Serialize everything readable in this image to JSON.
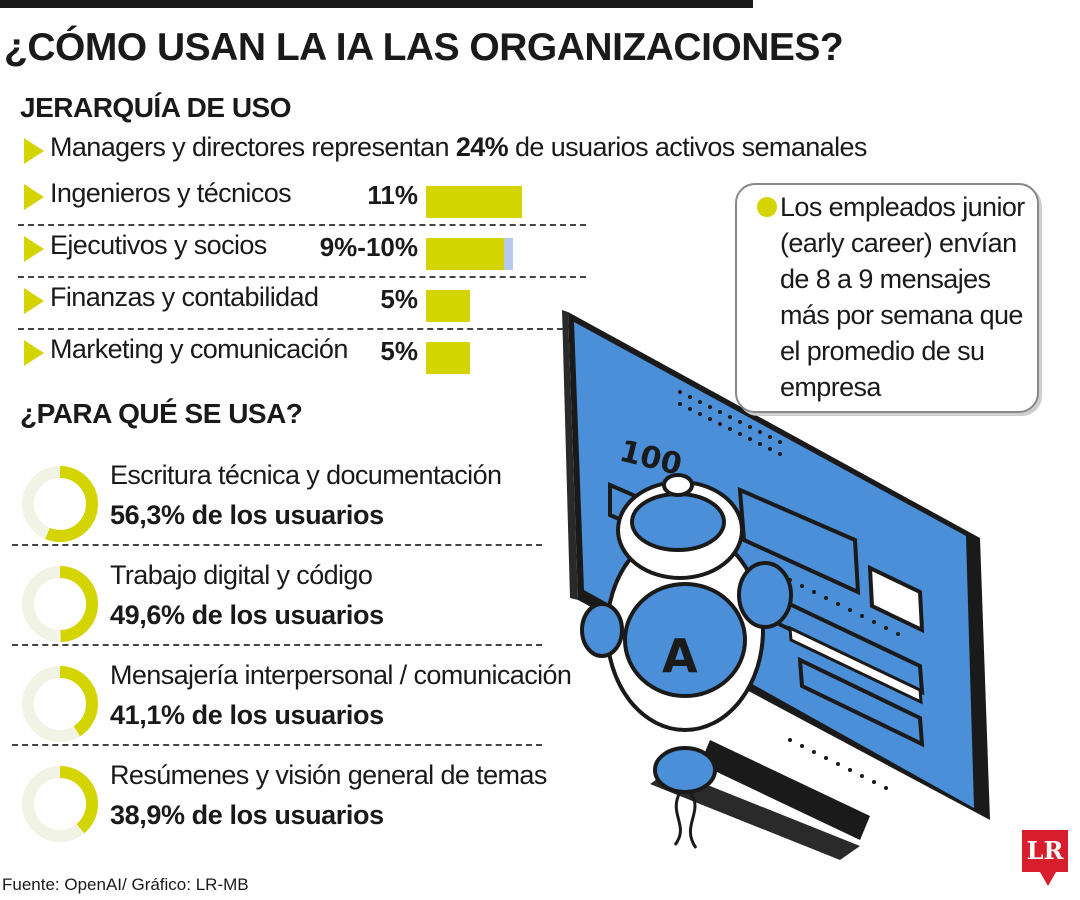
{
  "title": "¿CÓMO USAN LA IA LAS ORGANIZACIONES?",
  "hierarchy": {
    "heading": "JERARQUÍA DE USO",
    "intro_prefix": "Managers y directores representan",
    "intro_value": "24%",
    "intro_suffix": "de usuarios activos semanales",
    "items": [
      {
        "label": "Ingenieros y técnicos",
        "value_label": "11%"
      },
      {
        "label": "Ejecutivos y socios",
        "value_label": "9%-10%"
      },
      {
        "label": "Finanzas y contabilidad",
        "value_label": "5%"
      },
      {
        "label": "Marketing y comunicación",
        "value_label": "5%"
      }
    ]
  },
  "uses": {
    "heading": "¿PARA QUÉ SE USA?",
    "items": [
      {
        "label": "Escritura técnica y documentación",
        "value_label": "56,3% de los usuarios"
      },
      {
        "label": "Trabajo digital y código",
        "value_label": "49,6% de los usuarios"
      },
      {
        "label": "Mensajería interpersonal / comunicación",
        "value_label": "41,1% de los usuarios"
      },
      {
        "label": "Resúmenes y visión general de temas",
        "value_label": "38,9% de los usuarios"
      }
    ]
  },
  "callout": {
    "text": "Los empleados junior (early career) envían de 8 a 9 mensajes más por semana que el promedio de su empresa"
  },
  "source": "Fuente: OpenAI/ Gráfico: LR-MB",
  "logo_text": "LR",
  "illustration": {
    "screen_text": "100"
  },
  "colors": {
    "accent": "#d4d400",
    "secondary": "#b7c9ec",
    "donut_track": "#f1f4e4",
    "screen_blue": "#4a8fd8",
    "dark": "#1a1a1a"
  },
  "chart_data": [
    {
      "type": "bar",
      "title": "JERARQUÍA DE USO",
      "categories": [
        "Ingenieros y técnicos",
        "Ejecutivos y socios",
        "Finanzas y contabilidad",
        "Marketing y comunicación"
      ],
      "series": [
        {
          "values": [
            11,
            9,
            5,
            5
          ]
        },
        {
          "values": [
            0,
            1,
            0,
            0
          ]
        }
      ],
      "unit": "%",
      "orientation": "horizontal"
    },
    {
      "type": "pie",
      "title": "¿PARA QUÉ SE USA?",
      "categories": [
        "Escritura técnica y documentación",
        "Trabajo digital y código",
        "Mensajería interpersonal / comunicación",
        "Resúmenes y visión general de temas"
      ],
      "values": [
        56.3,
        49.6,
        41.1,
        38.9
      ],
      "unit": "% de los usuarios"
    }
  ]
}
